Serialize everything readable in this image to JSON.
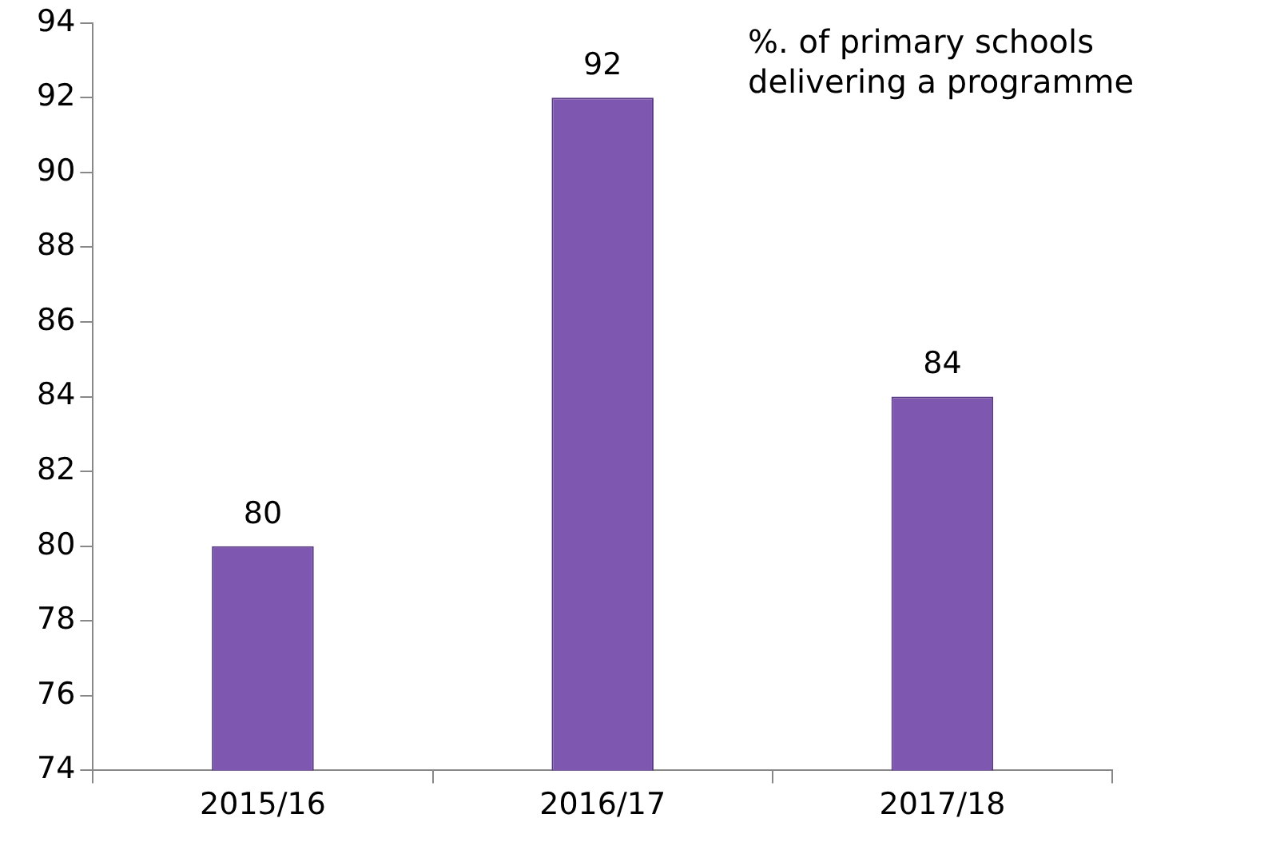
{
  "chart_data": {
    "type": "bar",
    "title": "%. of primary schools delivering a programme",
    "categories": [
      "2015/16",
      "2016/17",
      "2017/18"
    ],
    "values": [
      80,
      92,
      84
    ],
    "color": "#7e57b0",
    "ylim": [
      74,
      94
    ],
    "yticks": [
      74,
      76,
      78,
      80,
      82,
      84,
      86,
      88,
      90,
      92,
      94
    ],
    "grid": false,
    "data_labels": true,
    "legend": false
  }
}
